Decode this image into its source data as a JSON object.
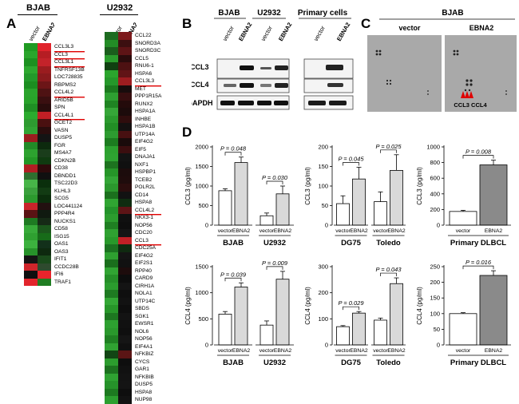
{
  "panel_labels": {
    "A": "A",
    "B": "B",
    "C": "C",
    "D": "D"
  },
  "panelA": {
    "bjab": {
      "title": "BJAB",
      "col_labels": [
        "vector",
        "EBNA2"
      ],
      "rows": [
        {
          "gene": "CCL3L3",
          "u": true,
          "c": [
            "#1f9a22",
            "#e0232b"
          ]
        },
        {
          "gene": "CCL3",
          "u": true,
          "c": [
            "#2aa52c",
            "#b61d23"
          ]
        },
        {
          "gene": "CCL3L1",
          "u": true,
          "c": [
            "#1c9120",
            "#c3232a"
          ]
        },
        {
          "gene": "TNFRSF13B",
          "u": false,
          "c": [
            "#2da82f",
            "#9a1c1f"
          ]
        },
        {
          "gene": "LOC728835",
          "u": false,
          "c": [
            "#23992a",
            "#8a1a1d"
          ]
        },
        {
          "gene": "RBPMS2",
          "u": false,
          "c": [
            "#1b8e20",
            "#6c1517"
          ]
        },
        {
          "gene": "CCL4L2",
          "u": true,
          "c": [
            "#2aa32c",
            "#4e1213"
          ]
        },
        {
          "gene": "ARID5B",
          "u": false,
          "c": [
            "#28a22a",
            "#3a0f10"
          ]
        },
        {
          "gene": "SPN",
          "u": false,
          "c": [
            "#1f8f24",
            "#2a0c0c"
          ]
        },
        {
          "gene": "CCL4L1",
          "u": true,
          "c": [
            "#2bab2e",
            "#c01f25"
          ]
        },
        {
          "gene": "GCET2",
          "u": false,
          "c": [
            "#2e9b30",
            "#4a1010"
          ]
        },
        {
          "gene": "VASN",
          "u": false,
          "c": [
            "#31a434",
            "#2a0d0d"
          ]
        },
        {
          "gene": "DUSP5",
          "u": false,
          "c": [
            "#9b1c1f",
            "#141414"
          ]
        },
        {
          "gene": "FGR",
          "u": false,
          "c": [
            "#228a27",
            "#0d2a0e"
          ]
        },
        {
          "gene": "MS4A7",
          "u": false,
          "c": [
            "#2da22f",
            "#1a3d1b"
          ]
        },
        {
          "gene": "CDKN2B",
          "u": false,
          "c": [
            "#239726",
            "#0f3a10"
          ]
        },
        {
          "gene": "CD38",
          "u": false,
          "c": [
            "#b01e23",
            "#2d0a0b"
          ]
        },
        {
          "gene": "DBNDD1",
          "u": false,
          "c": [
            "#2e6f2f",
            "#101010"
          ]
        },
        {
          "gene": "TSC22D3",
          "u": false,
          "c": [
            "#47b548",
            "#0a2f0c"
          ]
        },
        {
          "gene": "KLHL3",
          "u": false,
          "c": [
            "#3aa03c",
            "#123b13"
          ]
        },
        {
          "gene": "SCG5",
          "u": false,
          "c": [
            "#2c992e",
            "#0b2d0c"
          ]
        },
        {
          "gene": "LOC441124",
          "u": false,
          "c": [
            "#c8242a",
            "#221010"
          ]
        },
        {
          "gene": "PPP4R4",
          "u": false,
          "c": [
            "#5a1314",
            "#101a10"
          ]
        },
        {
          "gene": "NUCKS1",
          "u": false,
          "c": [
            "#1e7a22",
            "#162a16"
          ]
        },
        {
          "gene": "CD58",
          "u": false,
          "c": [
            "#37aa39",
            "#1b561c"
          ]
        },
        {
          "gene": "ISG15",
          "u": false,
          "c": [
            "#2fa031",
            "#176b19"
          ]
        },
        {
          "gene": "OAS1",
          "u": false,
          "c": [
            "#3cb13e",
            "#12301a"
          ]
        },
        {
          "gene": "OAS3",
          "u": false,
          "c": [
            "#27922a",
            "#0e290f"
          ]
        },
        {
          "gene": "IFIT1",
          "u": false,
          "c": [
            "#141414",
            "#1a4a1b"
          ]
        },
        {
          "gene": "CCDC28B",
          "u": false,
          "c": [
            "#cf252b",
            "#2e4a2e"
          ]
        },
        {
          "gene": "IFI6",
          "u": false,
          "c": [
            "#0f0f0f",
            "#e8242c"
          ]
        },
        {
          "gene": "TRAF1",
          "u": false,
          "c": [
            "#e2252c",
            "#1f7d22"
          ]
        }
      ]
    },
    "u2932": {
      "title": "U2932",
      "col_labels": [
        "vector",
        "EBNA2"
      ],
      "rows": [
        {
          "gene": "CCL22",
          "u": false,
          "c": [
            "#1d6b20",
            "#7c1a1c"
          ]
        },
        {
          "gene": "SNORD3A",
          "u": false,
          "c": [
            "#238c26",
            "#3c0f10"
          ]
        },
        {
          "gene": "SNORD3C",
          "u": false,
          "c": [
            "#1a5e1c",
            "#5d1416"
          ]
        },
        {
          "gene": "CCL5",
          "u": false,
          "c": [
            "#2a9c2c",
            "#2a0b0c"
          ]
        },
        {
          "gene": "RNU6-1",
          "u": false,
          "c": [
            "#0f4010",
            "#4d1112"
          ]
        },
        {
          "gene": "HSPA6",
          "u": false,
          "c": [
            "#2ba52d",
            "#611416"
          ]
        },
        {
          "gene": "CCL3L3",
          "u": true,
          "c": [
            "#25982a",
            "#9e1d20"
          ]
        },
        {
          "gene": "MET",
          "u": false,
          "c": [
            "#1b7a1e",
            "#180c0c"
          ]
        },
        {
          "gene": "PPP1R15A",
          "u": false,
          "c": [
            "#2e9f31",
            "#360e0f"
          ]
        },
        {
          "gene": "RUNX2",
          "u": false,
          "c": [
            "#1f8422",
            "#240b0b"
          ]
        },
        {
          "gene": "HSPA1A",
          "u": false,
          "c": [
            "#36a638",
            "#1c0b0b"
          ]
        },
        {
          "gene": "INHBE",
          "u": false,
          "c": [
            "#2a9a2d",
            "#2f0d0d"
          ]
        },
        {
          "gene": "HSPA1B",
          "u": false,
          "c": [
            "#228f25",
            "#141010"
          ]
        },
        {
          "gene": "UTP14A",
          "u": false,
          "c": [
            "#2d9b30",
            "#471011"
          ]
        },
        {
          "gene": "EIF4G2",
          "u": false,
          "c": [
            "#1c7c1f",
            "#1a0b0b"
          ]
        },
        {
          "gene": "EIF5",
          "u": false,
          "c": [
            "#2ca12f",
            "#3b0e0f"
          ]
        },
        {
          "gene": "DNAJA1",
          "u": false,
          "c": [
            "#2ea331",
            "#131313"
          ]
        },
        {
          "gene": "NXF1",
          "u": false,
          "c": [
            "#1d731f",
            "#101010"
          ]
        },
        {
          "gene": "HSPBP1",
          "u": false,
          "c": [
            "#269528",
            "#1c0c0c"
          ]
        },
        {
          "gene": "TCEB2",
          "u": false,
          "c": [
            "#33a536",
            "#1f0c0c"
          ]
        },
        {
          "gene": "POLR2L",
          "u": false,
          "c": [
            "#2b972d",
            "#2b0d0d"
          ]
        },
        {
          "gene": "CD14",
          "u": false,
          "c": [
            "#1b701d",
            "#121212"
          ]
        },
        {
          "gene": "HSPA8",
          "u": false,
          "c": [
            "#30a532",
            "#0f2c10"
          ]
        },
        {
          "gene": "CCL4L2",
          "u": true,
          "c": [
            "#23932a",
            "#5d1416"
          ]
        },
        {
          "gene": "NKX3-1",
          "u": false,
          "c": [
            "#2c9c2e",
            "#101010"
          ]
        },
        {
          "gene": "NOP56",
          "u": false,
          "c": [
            "#1f7f22",
            "#0e0e0e"
          ]
        },
        {
          "gene": "CDC20",
          "u": false,
          "c": [
            "#2fa131",
            "#151515"
          ]
        },
        {
          "gene": "CCL3",
          "u": true,
          "c": [
            "#28992a",
            "#c12026"
          ]
        },
        {
          "gene": "CDC25A",
          "u": false,
          "c": [
            "#1b7320",
            "#0f2a10"
          ]
        },
        {
          "gene": "EIF4G2",
          "u": false,
          "c": [
            "#2ea030",
            "#141414"
          ]
        },
        {
          "gene": "EIF2S1",
          "u": false,
          "c": [
            "#1a6e1c",
            "#111111"
          ]
        },
        {
          "gene": "RPP40",
          "u": false,
          "c": [
            "#31a433",
            "#1d0c0c"
          ]
        },
        {
          "gene": "CARD9",
          "u": false,
          "c": [
            "#258f28",
            "#0d0d0d"
          ]
        },
        {
          "gene": "CIRH1A",
          "u": false,
          "c": [
            "#2b9c2e",
            "#141414"
          ]
        },
        {
          "gene": "NOLA1",
          "u": false,
          "c": [
            "#1e7a21",
            "#0f0f0f"
          ]
        },
        {
          "gene": "UTP14C",
          "u": false,
          "c": [
            "#33a735",
            "#121212"
          ]
        },
        {
          "gene": "SBDS",
          "u": false,
          "c": [
            "#279629",
            "#0e0e0e"
          ]
        },
        {
          "gene": "SGK1",
          "u": false,
          "c": [
            "#1d7620",
            "#131313"
          ]
        },
        {
          "gene": "EWSR1",
          "u": false,
          "c": [
            "#2da030",
            "#111111"
          ]
        },
        {
          "gene": "NOL6",
          "u": false,
          "c": [
            "#2a982c",
            "#0f0f0f"
          ]
        },
        {
          "gene": "NOP56",
          "u": false,
          "c": [
            "#1f8022",
            "#151515"
          ]
        },
        {
          "gene": "EIF4A1",
          "u": false,
          "c": [
            "#30a232",
            "#101010"
          ]
        },
        {
          "gene": "NFKBIZ",
          "u": false,
          "c": [
            "#124514",
            "#5a1515"
          ]
        },
        {
          "gene": "CYCS",
          "u": false,
          "c": [
            "#2c9c2e",
            "#0e0e0e"
          ]
        },
        {
          "gene": "GAR1",
          "u": false,
          "c": [
            "#1c721f",
            "#111111"
          ]
        },
        {
          "gene": "NFKBIB",
          "u": false,
          "c": [
            "#2fa232",
            "#131313"
          ]
        },
        {
          "gene": "DUSP5",
          "u": false,
          "c": [
            "#26922a",
            "#141414"
          ]
        },
        {
          "gene": "HSPA8",
          "u": false,
          "c": [
            "#1d7a20",
            "#0e0e0e"
          ]
        },
        {
          "gene": "NUP98",
          "u": false,
          "c": [
            "#2c9f2f",
            "#121212"
          ]
        }
      ]
    }
  },
  "panelB": {
    "groups": [
      "BJAB",
      "U2932",
      "Primary cells"
    ],
    "lanes": [
      "vector",
      "EBNA2",
      "vector",
      "EBNA2",
      "vector",
      "EBNA2"
    ],
    "rows": [
      "CCL3",
      "CCL4",
      "GAPDH"
    ]
  },
  "panelC": {
    "title": "BJAB",
    "subpanels": [
      "vector",
      "EBNA2"
    ],
    "annotation": "CCL3 CCL4"
  },
  "chart_data": [
    {
      "id": "ccl3-bjab-u2932",
      "type": "bar",
      "ylabel": "CCL3 (pg/ml)",
      "ylim": [
        0,
        2000
      ],
      "yticks": [
        0,
        500,
        1000,
        1500,
        2000
      ],
      "groups": [
        {
          "name": "BJAB",
          "values": [
            880,
            1600
          ],
          "errors": [
            50,
            140
          ],
          "p": "P = 0.048"
        },
        {
          "name": "U2932",
          "values": [
            240,
            800
          ],
          "errors": [
            70,
            200
          ],
          "p": "P = 0.030"
        }
      ],
      "categories": [
        "vector",
        "EBNA2"
      ]
    },
    {
      "id": "ccl3-dg75-toledo",
      "type": "bar",
      "ylabel": "CCL3 (pg/ml)",
      "ylim": [
        0,
        200
      ],
      "yticks": [
        0,
        50,
        100,
        150,
        200
      ],
      "groups": [
        {
          "name": "DG75",
          "values": [
            55,
            118
          ],
          "errors": [
            20,
            30
          ],
          "p": "P = 0.045"
        },
        {
          "name": "Toledo",
          "values": [
            60,
            140
          ],
          "errors": [
            25,
            40
          ],
          "p": "P = 0.025"
        }
      ],
      "categories": [
        "vector",
        "EBNA2"
      ]
    },
    {
      "id": "ccl3-primary",
      "type": "bar",
      "ylabel": "CCL3 (pg/ml)",
      "ylim": [
        0,
        1000
      ],
      "yticks": [
        0,
        200,
        400,
        600,
        800,
        1000
      ],
      "groups": [
        {
          "name": "Primary DLBCL",
          "values": [
            175,
            770
          ],
          "errors": [
            15,
            60
          ],
          "p": "P = 0.008"
        }
      ],
      "categories": [
        "vector",
        "EBNA2"
      ]
    },
    {
      "id": "ccl4-bjab-u2932",
      "type": "bar",
      "ylabel": "CCL4 (pg/ml)",
      "ylim": [
        0,
        1500
      ],
      "yticks": [
        0,
        500,
        1000,
        1500
      ],
      "groups": [
        {
          "name": "BJAB",
          "values": [
            590,
            1110
          ],
          "errors": [
            50,
            80
          ],
          "p": "P = 0.039"
        },
        {
          "name": "U2932",
          "values": [
            380,
            1260
          ],
          "errors": [
            80,
            150
          ],
          "p": "P = 0.009"
        }
      ],
      "categories": [
        "vector",
        "EBNA2"
      ]
    },
    {
      "id": "ccl4-dg75-toledo",
      "type": "bar",
      "ylabel": "CCL4 (pg/ml)",
      "ylim": [
        0,
        300
      ],
      "yticks": [
        0,
        100,
        200,
        300
      ],
      "groups": [
        {
          "name": "DG75",
          "values": [
            70,
            122
          ],
          "errors": [
            4,
            6
          ],
          "p": "P = 0.029"
        },
        {
          "name": "Toledo",
          "values": [
            95,
            235
          ],
          "errors": [
            8,
            22
          ],
          "p": "P = 0.043"
        }
      ],
      "categories": [
        "vector",
        "EBNA2"
      ]
    },
    {
      "id": "ccl4-primary",
      "type": "bar",
      "ylabel": "CCL4 (pg/ml)",
      "ylim": [
        0,
        250
      ],
      "yticks": [
        0,
        50,
        100,
        150,
        200,
        250
      ],
      "groups": [
        {
          "name": "Primary DLBCL",
          "values": [
            100,
            222
          ],
          "errors": [
            3,
            15
          ],
          "p": "P = 0.016"
        }
      ],
      "categories": [
        "vector",
        "EBNA2"
      ]
    }
  ]
}
